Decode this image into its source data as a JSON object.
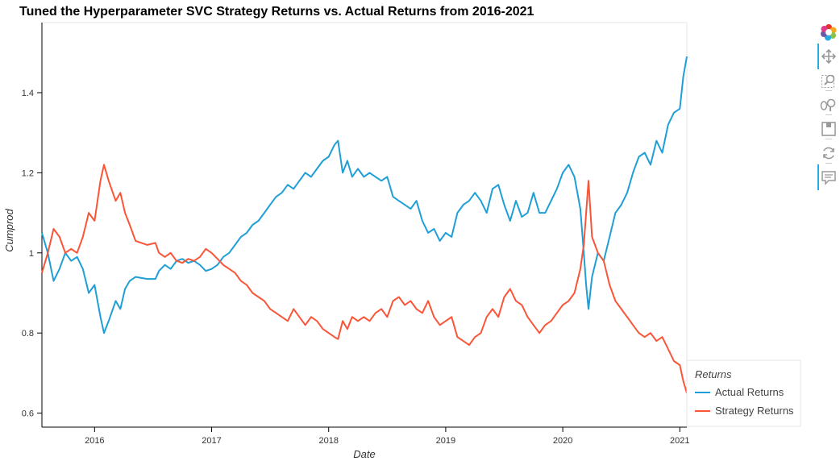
{
  "chart_data": {
    "type": "line",
    "title": "Tuned the Hyperparameter SVC Strategy Returns vs. Actual Returns from 2016-2021",
    "xlabel": "Date",
    "ylabel": "Cumprod",
    "xlim": [
      2015.55,
      2021.06
    ],
    "ylim": [
      0.565,
      1.575
    ],
    "x_ticks": [
      2016,
      2017,
      2018,
      2019,
      2020,
      2021
    ],
    "x_tick_labels": [
      "2016",
      "2017",
      "2018",
      "2019",
      "2020",
      "2021"
    ],
    "y_ticks": [
      0.6,
      0.8,
      1.0,
      1.2,
      1.4
    ],
    "y_tick_labels": [
      "0.6",
      "0.8",
      "1",
      "1.2",
      "1.4"
    ],
    "grid": false,
    "legend": {
      "title": "Returns",
      "placement": "bottom-right-outside"
    },
    "series": [
      {
        "name": "Actual Returns",
        "color": "#1f9fd5",
        "points": [
          [
            2015.55,
            1.05
          ],
          [
            2015.6,
            1.0
          ],
          [
            2015.65,
            0.93
          ],
          [
            2015.7,
            0.96
          ],
          [
            2015.75,
            1.0
          ],
          [
            2015.8,
            0.98
          ],
          [
            2015.85,
            0.99
          ],
          [
            2015.9,
            0.96
          ],
          [
            2015.95,
            0.9
          ],
          [
            2016.0,
            0.92
          ],
          [
            2016.05,
            0.84
          ],
          [
            2016.08,
            0.8
          ],
          [
            2016.12,
            0.83
          ],
          [
            2016.18,
            0.88
          ],
          [
            2016.22,
            0.86
          ],
          [
            2016.26,
            0.91
          ],
          [
            2016.3,
            0.93
          ],
          [
            2016.35,
            0.94
          ],
          [
            2016.45,
            0.935
          ],
          [
            2016.52,
            0.935
          ],
          [
            2016.55,
            0.955
          ],
          [
            2016.6,
            0.97
          ],
          [
            2016.65,
            0.96
          ],
          [
            2016.7,
            0.98
          ],
          [
            2016.75,
            0.985
          ],
          [
            2016.8,
            0.975
          ],
          [
            2016.85,
            0.98
          ],
          [
            2016.9,
            0.97
          ],
          [
            2016.95,
            0.955
          ],
          [
            2017.0,
            0.96
          ],
          [
            2017.05,
            0.97
          ],
          [
            2017.1,
            0.99
          ],
          [
            2017.15,
            1.0
          ],
          [
            2017.2,
            1.02
          ],
          [
            2017.25,
            1.04
          ],
          [
            2017.3,
            1.05
          ],
          [
            2017.35,
            1.07
          ],
          [
            2017.4,
            1.08
          ],
          [
            2017.45,
            1.1
          ],
          [
            2017.5,
            1.12
          ],
          [
            2017.55,
            1.14
          ],
          [
            2017.6,
            1.15
          ],
          [
            2017.65,
            1.17
          ],
          [
            2017.7,
            1.16
          ],
          [
            2017.75,
            1.18
          ],
          [
            2017.8,
            1.2
          ],
          [
            2017.85,
            1.19
          ],
          [
            2017.9,
            1.21
          ],
          [
            2017.95,
            1.23
          ],
          [
            2018.0,
            1.24
          ],
          [
            2018.05,
            1.27
          ],
          [
            2018.08,
            1.28
          ],
          [
            2018.12,
            1.2
          ],
          [
            2018.16,
            1.23
          ],
          [
            2018.2,
            1.19
          ],
          [
            2018.25,
            1.21
          ],
          [
            2018.3,
            1.19
          ],
          [
            2018.35,
            1.2
          ],
          [
            2018.4,
            1.19
          ],
          [
            2018.45,
            1.18
          ],
          [
            2018.5,
            1.19
          ],
          [
            2018.55,
            1.14
          ],
          [
            2018.6,
            1.13
          ],
          [
            2018.65,
            1.12
          ],
          [
            2018.7,
            1.11
          ],
          [
            2018.75,
            1.13
          ],
          [
            2018.8,
            1.08
          ],
          [
            2018.85,
            1.05
          ],
          [
            2018.9,
            1.06
          ],
          [
            2018.95,
            1.03
          ],
          [
            2019.0,
            1.05
          ],
          [
            2019.05,
            1.04
          ],
          [
            2019.1,
            1.1
          ],
          [
            2019.15,
            1.12
          ],
          [
            2019.2,
            1.13
          ],
          [
            2019.25,
            1.15
          ],
          [
            2019.3,
            1.13
          ],
          [
            2019.35,
            1.1
          ],
          [
            2019.4,
            1.16
          ],
          [
            2019.45,
            1.17
          ],
          [
            2019.5,
            1.12
          ],
          [
            2019.55,
            1.08
          ],
          [
            2019.6,
            1.13
          ],
          [
            2019.65,
            1.09
          ],
          [
            2019.7,
            1.1
          ],
          [
            2019.75,
            1.15
          ],
          [
            2019.8,
            1.1
          ],
          [
            2019.85,
            1.1
          ],
          [
            2019.9,
            1.13
          ],
          [
            2019.95,
            1.16
          ],
          [
            2020.0,
            1.2
          ],
          [
            2020.05,
            1.22
          ],
          [
            2020.1,
            1.19
          ],
          [
            2020.15,
            1.11
          ],
          [
            2020.18,
            1.0
          ],
          [
            2020.2,
            0.92
          ],
          [
            2020.22,
            0.86
          ],
          [
            2020.25,
            0.94
          ],
          [
            2020.3,
            1.0
          ],
          [
            2020.35,
            0.98
          ],
          [
            2020.4,
            1.04
          ],
          [
            2020.45,
            1.1
          ],
          [
            2020.5,
            1.12
          ],
          [
            2020.55,
            1.15
          ],
          [
            2020.6,
            1.2
          ],
          [
            2020.65,
            1.24
          ],
          [
            2020.7,
            1.25
          ],
          [
            2020.75,
            1.22
          ],
          [
            2020.8,
            1.28
          ],
          [
            2020.85,
            1.25
          ],
          [
            2020.9,
            1.32
          ],
          [
            2020.95,
            1.35
          ],
          [
            2021.0,
            1.36
          ],
          [
            2021.03,
            1.44
          ],
          [
            2021.06,
            1.49
          ]
        ]
      },
      {
        "name": "Strategy Returns",
        "color": "#fa5538",
        "points": [
          [
            2015.55,
            0.95
          ],
          [
            2015.6,
            1.0
          ],
          [
            2015.65,
            1.06
          ],
          [
            2015.7,
            1.04
          ],
          [
            2015.75,
            1.0
          ],
          [
            2015.8,
            1.01
          ],
          [
            2015.85,
            1.0
          ],
          [
            2015.9,
            1.04
          ],
          [
            2015.95,
            1.1
          ],
          [
            2016.0,
            1.08
          ],
          [
            2016.05,
            1.18
          ],
          [
            2016.08,
            1.22
          ],
          [
            2016.12,
            1.18
          ],
          [
            2016.18,
            1.13
          ],
          [
            2016.22,
            1.15
          ],
          [
            2016.26,
            1.1
          ],
          [
            2016.3,
            1.07
          ],
          [
            2016.35,
            1.03
          ],
          [
            2016.45,
            1.02
          ],
          [
            2016.52,
            1.025
          ],
          [
            2016.55,
            1.0
          ],
          [
            2016.6,
            0.99
          ],
          [
            2016.65,
            1.0
          ],
          [
            2016.7,
            0.98
          ],
          [
            2016.75,
            0.975
          ],
          [
            2016.8,
            0.985
          ],
          [
            2016.85,
            0.98
          ],
          [
            2016.9,
            0.99
          ],
          [
            2016.95,
            1.01
          ],
          [
            2017.0,
            1.0
          ],
          [
            2017.05,
            0.985
          ],
          [
            2017.1,
            0.97
          ],
          [
            2017.15,
            0.96
          ],
          [
            2017.2,
            0.95
          ],
          [
            2017.25,
            0.93
          ],
          [
            2017.3,
            0.92
          ],
          [
            2017.35,
            0.9
          ],
          [
            2017.4,
            0.89
          ],
          [
            2017.45,
            0.88
          ],
          [
            2017.5,
            0.86
          ],
          [
            2017.55,
            0.85
          ],
          [
            2017.6,
            0.84
          ],
          [
            2017.65,
            0.83
          ],
          [
            2017.7,
            0.86
          ],
          [
            2017.75,
            0.84
          ],
          [
            2017.8,
            0.82
          ],
          [
            2017.85,
            0.84
          ],
          [
            2017.9,
            0.83
          ],
          [
            2017.95,
            0.81
          ],
          [
            2018.0,
            0.8
          ],
          [
            2018.05,
            0.79
          ],
          [
            2018.08,
            0.785
          ],
          [
            2018.12,
            0.83
          ],
          [
            2018.16,
            0.81
          ],
          [
            2018.2,
            0.84
          ],
          [
            2018.25,
            0.83
          ],
          [
            2018.3,
            0.84
          ],
          [
            2018.35,
            0.83
          ],
          [
            2018.4,
            0.85
          ],
          [
            2018.45,
            0.86
          ],
          [
            2018.5,
            0.84
          ],
          [
            2018.55,
            0.88
          ],
          [
            2018.6,
            0.89
          ],
          [
            2018.65,
            0.87
          ],
          [
            2018.7,
            0.88
          ],
          [
            2018.75,
            0.86
          ],
          [
            2018.8,
            0.85
          ],
          [
            2018.85,
            0.88
          ],
          [
            2018.9,
            0.84
          ],
          [
            2018.95,
            0.82
          ],
          [
            2019.0,
            0.83
          ],
          [
            2019.05,
            0.84
          ],
          [
            2019.1,
            0.79
          ],
          [
            2019.15,
            0.78
          ],
          [
            2019.2,
            0.77
          ],
          [
            2019.25,
            0.79
          ],
          [
            2019.3,
            0.8
          ],
          [
            2019.35,
            0.84
          ],
          [
            2019.4,
            0.86
          ],
          [
            2019.45,
            0.84
          ],
          [
            2019.5,
            0.89
          ],
          [
            2019.55,
            0.91
          ],
          [
            2019.6,
            0.88
          ],
          [
            2019.65,
            0.87
          ],
          [
            2019.7,
            0.84
          ],
          [
            2019.75,
            0.82
          ],
          [
            2019.8,
            0.8
          ],
          [
            2019.85,
            0.82
          ],
          [
            2019.9,
            0.83
          ],
          [
            2019.95,
            0.85
          ],
          [
            2020.0,
            0.87
          ],
          [
            2020.05,
            0.88
          ],
          [
            2020.1,
            0.9
          ],
          [
            2020.15,
            0.96
          ],
          [
            2020.18,
            1.02
          ],
          [
            2020.2,
            1.1
          ],
          [
            2020.22,
            1.18
          ],
          [
            2020.25,
            1.04
          ],
          [
            2020.3,
            1.0
          ],
          [
            2020.35,
            0.98
          ],
          [
            2020.4,
            0.92
          ],
          [
            2020.45,
            0.88
          ],
          [
            2020.5,
            0.86
          ],
          [
            2020.55,
            0.84
          ],
          [
            2020.6,
            0.82
          ],
          [
            2020.65,
            0.8
          ],
          [
            2020.7,
            0.79
          ],
          [
            2020.75,
            0.8
          ],
          [
            2020.8,
            0.78
          ],
          [
            2020.85,
            0.79
          ],
          [
            2020.9,
            0.76
          ],
          [
            2020.95,
            0.73
          ],
          [
            2021.0,
            0.72
          ],
          [
            2021.03,
            0.68
          ],
          [
            2021.06,
            0.65
          ]
        ]
      }
    ]
  },
  "toolbar": {
    "items": [
      "bokeh-logo-icon",
      "pan-tool-icon",
      "box-zoom-tool-icon",
      "wheel-zoom-tool-icon",
      "save-tool-icon",
      "reset-tool-icon",
      "hover-tool-icon"
    ],
    "accent": "#26aae1"
  }
}
